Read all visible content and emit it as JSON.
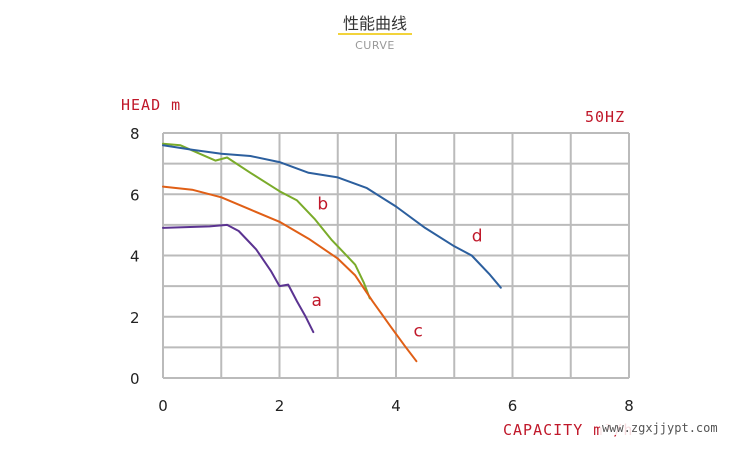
{
  "header": {
    "title": "性能曲线",
    "subtitle": "CURVE"
  },
  "watermark": "www.zgxjjypt.com",
  "colors": {
    "grid": "#bbbbbb",
    "axis_text": "#c0182a",
    "title_underline": "#f2d33b"
  },
  "chart_data": {
    "type": "line",
    "ylabel": "HEAD m",
    "xlabel": "CAPACITY m³/h",
    "annotation": "50HZ",
    "xlim": [
      0,
      8
    ],
    "ylim": [
      0,
      8
    ],
    "x_ticks": [
      0,
      2,
      4,
      6,
      8
    ],
    "y_ticks": [
      0,
      2,
      4,
      6,
      8
    ],
    "grid": true,
    "series": [
      {
        "name": "a",
        "color": "#5b3391",
        "points": [
          [
            0,
            4.9
          ],
          [
            0.8,
            4.95
          ],
          [
            1.1,
            5.0
          ],
          [
            1.3,
            4.8
          ],
          [
            1.6,
            4.2
          ],
          [
            1.85,
            3.5
          ],
          [
            2.0,
            3.0
          ],
          [
            2.15,
            3.05
          ],
          [
            2.3,
            2.5
          ],
          [
            2.45,
            2.0
          ],
          [
            2.58,
            1.5
          ]
        ]
      },
      {
        "name": "b",
        "color": "#7aab2a",
        "points": [
          [
            0,
            7.65
          ],
          [
            0.3,
            7.6
          ],
          [
            0.6,
            7.35
          ],
          [
            0.9,
            7.1
          ],
          [
            1.1,
            7.2
          ],
          [
            1.5,
            6.7
          ],
          [
            2.0,
            6.1
          ],
          [
            2.3,
            5.8
          ],
          [
            2.6,
            5.2
          ],
          [
            2.9,
            4.5
          ],
          [
            3.1,
            4.1
          ],
          [
            3.3,
            3.7
          ],
          [
            3.45,
            3.1
          ],
          [
            3.55,
            2.6
          ]
        ]
      },
      {
        "name": "c",
        "color": "#e05f16",
        "points": [
          [
            0,
            6.25
          ],
          [
            0.5,
            6.15
          ],
          [
            1.0,
            5.9
          ],
          [
            1.5,
            5.5
          ],
          [
            2.0,
            5.1
          ],
          [
            2.5,
            4.55
          ],
          [
            3.0,
            3.9
          ],
          [
            3.3,
            3.35
          ],
          [
            3.6,
            2.5
          ],
          [
            3.9,
            1.7
          ],
          [
            4.15,
            1.05
          ],
          [
            4.35,
            0.55
          ]
        ]
      },
      {
        "name": "d",
        "color": "#2c5f9e",
        "points": [
          [
            0,
            7.6
          ],
          [
            0.5,
            7.45
          ],
          [
            1.0,
            7.32
          ],
          [
            1.5,
            7.25
          ],
          [
            2.0,
            7.05
          ],
          [
            2.5,
            6.7
          ],
          [
            3.0,
            6.55
          ],
          [
            3.5,
            6.2
          ],
          [
            4.0,
            5.6
          ],
          [
            4.5,
            4.9
          ],
          [
            5.0,
            4.3
          ],
          [
            5.3,
            4.0
          ],
          [
            5.6,
            3.4
          ],
          [
            5.8,
            2.95
          ]
        ]
      }
    ]
  }
}
